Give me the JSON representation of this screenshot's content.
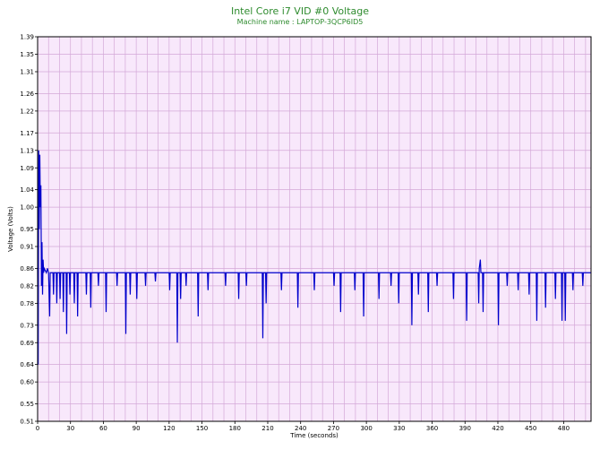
{
  "chart_data": {
    "type": "line",
    "title": "Intel Core i7 VID #0 Voltage",
    "subtitle": "Machine name : LAPTOP-3QCP6ID5",
    "xlabel": "Time (seconds)",
    "ylabel": "Voltage (Volts)",
    "xlim": [
      0,
      505
    ],
    "ylim": [
      0.51,
      1.39
    ],
    "x_ticks": [
      0,
      30,
      60,
      90,
      120,
      150,
      180,
      210,
      240,
      270,
      300,
      330,
      360,
      390,
      420,
      450,
      480
    ],
    "y_ticks": [
      "0.51",
      "0.55",
      "0.60",
      "0.64",
      "0.69",
      "0.73",
      "0.78",
      "0.82",
      "0.86",
      "0.91",
      "0.95",
      "1.00",
      "1.04",
      "1.09",
      "1.13",
      "1.17",
      "1.22",
      "1.26",
      "1.31",
      "1.35",
      "1.39"
    ],
    "grid": true,
    "colors": {
      "plot_background": "#f8e8fb",
      "grid": "#d4a8d8",
      "line": "#0000cc",
      "title": "#2e8b2e"
    },
    "series": [
      {
        "values": [
          [
            0,
            0.86
          ],
          [
            0.5,
            0.64
          ],
          [
            1,
            1.13
          ],
          [
            1.5,
            0.95
          ],
          [
            2,
            1.12
          ],
          [
            2.5,
            1.0
          ],
          [
            3,
            1.05
          ],
          [
            3.5,
            0.82
          ],
          [
            4,
            0.92
          ],
          [
            4.5,
            0.8
          ],
          [
            5,
            0.88
          ],
          [
            5.5,
            0.85
          ],
          [
            6,
            0.86
          ],
          [
            8,
            0.85
          ],
          [
            9,
            0.86
          ],
          [
            10,
            0.85
          ],
          [
            11,
            0.75
          ],
          [
            11.5,
            0.85
          ],
          [
            14,
            0.85
          ],
          [
            14.5,
            0.8
          ],
          [
            15,
            0.85
          ],
          [
            17,
            0.85
          ],
          [
            17.5,
            0.78
          ],
          [
            18,
            0.85
          ],
          [
            20,
            0.85
          ],
          [
            20.5,
            0.79
          ],
          [
            21,
            0.85
          ],
          [
            23,
            0.85
          ],
          [
            23.5,
            0.76
          ],
          [
            24,
            0.85
          ],
          [
            26,
            0.85
          ],
          [
            26.5,
            0.71
          ],
          [
            27,
            0.85
          ],
          [
            29,
            0.85
          ],
          [
            29.5,
            0.8
          ],
          [
            30,
            0.85
          ],
          [
            33,
            0.85
          ],
          [
            33.5,
            0.78
          ],
          [
            34,
            0.85
          ],
          [
            36,
            0.85
          ],
          [
            36.5,
            0.75
          ],
          [
            37,
            0.85
          ],
          [
            44,
            0.85
          ],
          [
            44.5,
            0.8
          ],
          [
            45,
            0.85
          ],
          [
            48,
            0.85
          ],
          [
            48.5,
            0.77
          ],
          [
            49,
            0.85
          ],
          [
            55,
            0.85
          ],
          [
            55.5,
            0.82
          ],
          [
            56,
            0.85
          ],
          [
            62,
            0.85
          ],
          [
            62.5,
            0.76
          ],
          [
            63,
            0.85
          ],
          [
            72,
            0.85
          ],
          [
            72.5,
            0.82
          ],
          [
            73,
            0.85
          ],
          [
            80,
            0.85
          ],
          [
            80.5,
            0.71
          ],
          [
            81,
            0.85
          ],
          [
            84,
            0.85
          ],
          [
            84.5,
            0.8
          ],
          [
            85,
            0.85
          ],
          [
            90,
            0.85
          ],
          [
            90.5,
            0.79
          ],
          [
            91,
            0.85
          ],
          [
            98,
            0.85
          ],
          [
            98.5,
            0.82
          ],
          [
            99,
            0.85
          ],
          [
            107,
            0.85
          ],
          [
            107.5,
            0.83
          ],
          [
            108,
            0.85
          ],
          [
            120,
            0.85
          ],
          [
            120.5,
            0.81
          ],
          [
            121,
            0.85
          ],
          [
            127,
            0.85
          ],
          [
            127.5,
            0.69
          ],
          [
            128,
            0.85
          ],
          [
            130,
            0.85
          ],
          [
            130.5,
            0.79
          ],
          [
            131,
            0.85
          ],
          [
            135,
            0.85
          ],
          [
            135.5,
            0.82
          ],
          [
            136,
            0.85
          ],
          [
            146,
            0.85
          ],
          [
            146.5,
            0.75
          ],
          [
            147,
            0.85
          ],
          [
            155,
            0.85
          ],
          [
            155.5,
            0.81
          ],
          [
            156,
            0.85
          ],
          [
            171,
            0.85
          ],
          [
            171.5,
            0.82
          ],
          [
            172,
            0.85
          ],
          [
            183,
            0.85
          ],
          [
            183.5,
            0.79
          ],
          [
            184,
            0.85
          ],
          [
            190,
            0.85
          ],
          [
            190.5,
            0.82
          ],
          [
            191,
            0.85
          ],
          [
            205,
            0.85
          ],
          [
            205.5,
            0.7
          ],
          [
            206,
            0.85
          ],
          [
            208,
            0.85
          ],
          [
            208.5,
            0.78
          ],
          [
            209,
            0.85
          ],
          [
            222,
            0.85
          ],
          [
            222.5,
            0.81
          ],
          [
            223,
            0.85
          ],
          [
            237,
            0.85
          ],
          [
            237.5,
            0.77
          ],
          [
            238,
            0.85
          ],
          [
            252,
            0.85
          ],
          [
            252.5,
            0.81
          ],
          [
            253,
            0.85
          ],
          [
            270,
            0.85
          ],
          [
            270.5,
            0.82
          ],
          [
            271,
            0.85
          ],
          [
            276,
            0.85
          ],
          [
            276.5,
            0.76
          ],
          [
            277,
            0.85
          ],
          [
            289,
            0.85
          ],
          [
            289.5,
            0.81
          ],
          [
            290,
            0.85
          ],
          [
            297,
            0.85
          ],
          [
            297.5,
            0.75
          ],
          [
            298,
            0.85
          ],
          [
            311,
            0.85
          ],
          [
            311.5,
            0.79
          ],
          [
            312,
            0.85
          ],
          [
            322,
            0.85
          ],
          [
            322.5,
            0.82
          ],
          [
            323,
            0.85
          ],
          [
            329,
            0.85
          ],
          [
            329.5,
            0.78
          ],
          [
            330,
            0.85
          ],
          [
            341,
            0.85
          ],
          [
            341.5,
            0.73
          ],
          [
            342,
            0.85
          ],
          [
            347,
            0.85
          ],
          [
            347.5,
            0.8
          ],
          [
            348,
            0.85
          ],
          [
            356,
            0.85
          ],
          [
            356.5,
            0.76
          ],
          [
            357,
            0.85
          ],
          [
            364,
            0.85
          ],
          [
            364.5,
            0.82
          ],
          [
            365,
            0.85
          ],
          [
            379,
            0.85
          ],
          [
            379.5,
            0.79
          ],
          [
            380,
            0.85
          ],
          [
            391,
            0.85
          ],
          [
            391.5,
            0.74
          ],
          [
            392,
            0.85
          ],
          [
            402,
            0.85
          ],
          [
            402.5,
            0.78
          ],
          [
            403,
            0.86
          ],
          [
            404,
            0.88
          ],
          [
            404.5,
            0.85
          ],
          [
            406,
            0.85
          ],
          [
            406.5,
            0.76
          ],
          [
            407,
            0.85
          ],
          [
            420,
            0.85
          ],
          [
            420.5,
            0.73
          ],
          [
            421,
            0.85
          ],
          [
            428,
            0.85
          ],
          [
            428.5,
            0.82
          ],
          [
            429,
            0.85
          ],
          [
            438,
            0.85
          ],
          [
            438.5,
            0.81
          ],
          [
            439,
            0.85
          ],
          [
            448,
            0.85
          ],
          [
            448.5,
            0.8
          ],
          [
            449,
            0.85
          ],
          [
            455,
            0.85
          ],
          [
            455.5,
            0.74
          ],
          [
            456,
            0.85
          ],
          [
            463,
            0.85
          ],
          [
            463.5,
            0.77
          ],
          [
            464,
            0.85
          ],
          [
            472,
            0.85
          ],
          [
            472.5,
            0.79
          ],
          [
            473,
            0.85
          ],
          [
            478,
            0.85
          ],
          [
            478.5,
            0.74
          ],
          [
            479,
            0.85
          ],
          [
            481,
            0.85
          ],
          [
            481.5,
            0.74
          ],
          [
            482,
            0.85
          ],
          [
            488,
            0.85
          ],
          [
            488.5,
            0.81
          ],
          [
            489,
            0.85
          ],
          [
            497,
            0.85
          ],
          [
            497.5,
            0.82
          ],
          [
            498,
            0.85
          ],
          [
            505,
            0.85
          ]
        ]
      }
    ]
  }
}
